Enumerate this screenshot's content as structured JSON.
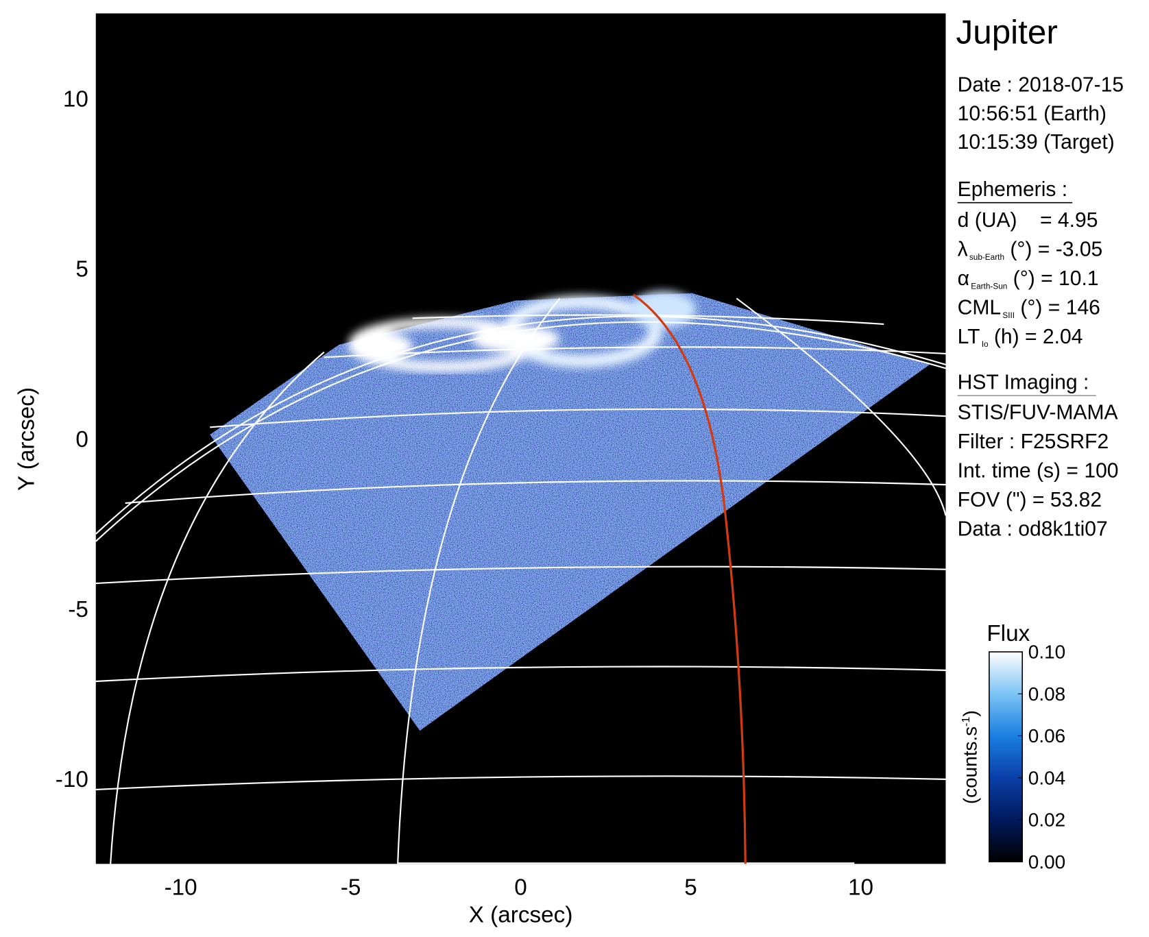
{
  "chart_data": {
    "type": "image",
    "xlabel": "X (arcsec)",
    "ylabel": "Y (arcsec)",
    "xlim": [
      -12.5,
      12.5
    ],
    "ylim": [
      -12.5,
      12.5
    ],
    "xticks": [
      -10,
      -5,
      0,
      5,
      10
    ],
    "yticks": [
      -10,
      -5,
      0,
      5,
      10
    ],
    "colorbar": {
      "title": "Flux",
      "label": [
        "(counts.s",
        "-1",
        ")"
      ],
      "lim": [
        0,
        0.1
      ],
      "ticks": [
        {
          "value": 0,
          "label": "0.00"
        },
        {
          "value": 0.02,
          "label": "0.02"
        },
        {
          "value": 0.04,
          "label": "0.04"
        },
        {
          "value": 0.06,
          "label": "0.06"
        },
        {
          "value": 0.08,
          "label": "0.08"
        },
        {
          "value": 0.1,
          "label": "0.10"
        }
      ],
      "colors": [
        "#000000",
        "#001a5c",
        "#0a3fa8",
        "#1a7fe0",
        "#7cc4f5",
        "#ffffff"
      ]
    }
  },
  "info": {
    "title": "Jupiter",
    "date": [
      "Date : 2018-07-15",
      "10:56:51 (Earth)",
      "10:15:39 (Target)"
    ],
    "ephemeris": {
      "heading": "Ephemeris :",
      "lines": [
        {
          "text": "d (UA)    = 4.95"
        },
        {
          "symbol": "λ",
          "sub": "sub-Earth",
          "text": " (°) = -3.05"
        },
        {
          "symbol": "α",
          "sub": "Earth-Sun",
          "text": " (°) = 10.1"
        },
        {
          "symbol": "CML",
          "sub": "SIII",
          "text": " (°) = 146"
        },
        {
          "symbol": "LT",
          "sub": "Io",
          "text": " (h) = 2.04"
        }
      ]
    },
    "imaging": {
      "heading": "HST Imaging :",
      "lines": [
        "STIS/FUV-MAMA",
        "Filter : F25SRF2",
        "Int. time (s) = 100",
        "FOV (\") = 53.82",
        "Data : od8k1ti07"
      ]
    }
  }
}
